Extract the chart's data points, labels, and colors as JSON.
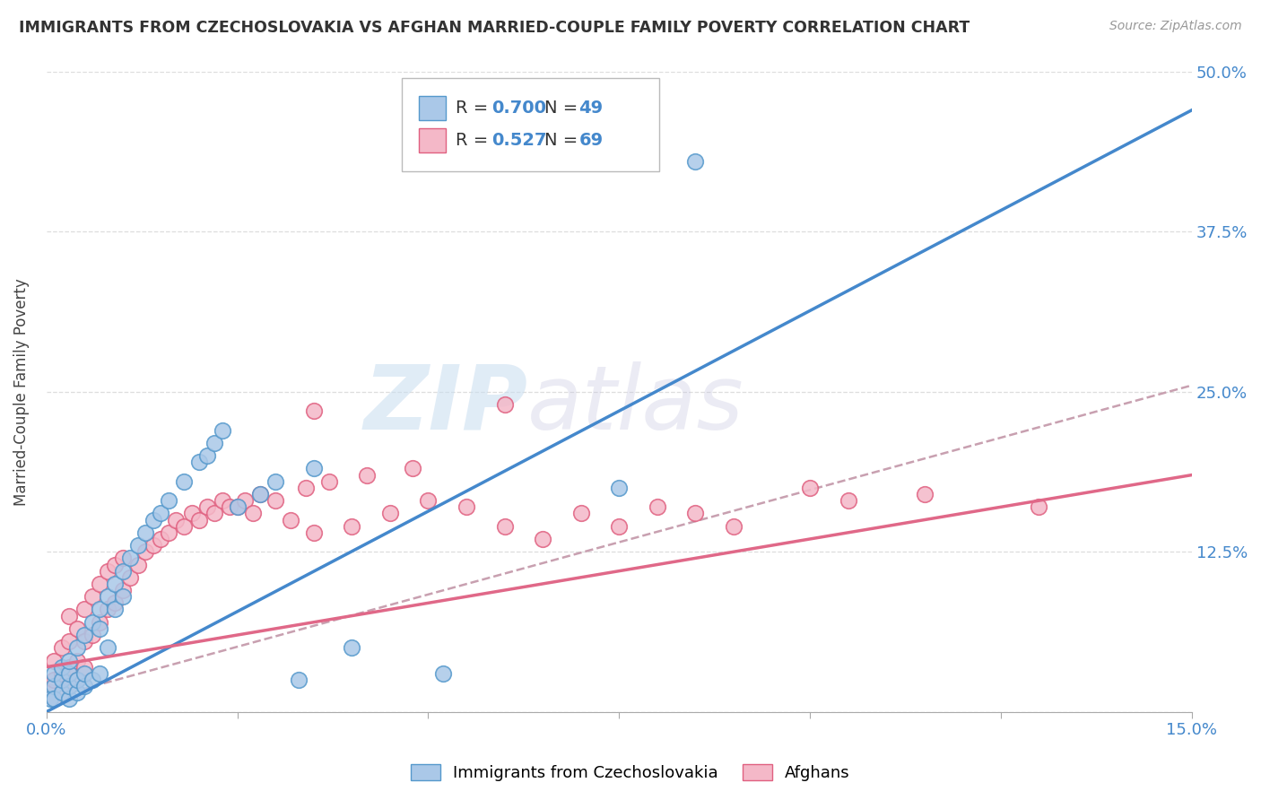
{
  "title": "IMMIGRANTS FROM CZECHOSLOVAKIA VS AFGHAN MARRIED-COUPLE FAMILY POVERTY CORRELATION CHART",
  "source": "Source: ZipAtlas.com",
  "ylabel": "Married-Couple Family Poverty",
  "legend_footer1": "Immigrants from Czechoslovakia",
  "legend_footer2": "Afghans",
  "blue_fill": "#aac8e8",
  "blue_edge": "#5599cc",
  "pink_fill": "#f4b8c8",
  "pink_edge": "#e06080",
  "blue_line": "#4488cc",
  "pink_line": "#e06888",
  "dash_line": "#c8a0b0",
  "xlim": [
    0,
    0.15
  ],
  "ylim": [
    0,
    0.5
  ],
  "blue_x": [
    0.0005,
    0.001,
    0.001,
    0.001,
    0.002,
    0.002,
    0.002,
    0.003,
    0.003,
    0.003,
    0.003,
    0.004,
    0.004,
    0.004,
    0.005,
    0.005,
    0.005,
    0.006,
    0.006,
    0.007,
    0.007,
    0.007,
    0.008,
    0.008,
    0.009,
    0.009,
    0.01,
    0.01,
    0.011,
    0.012,
    0.013,
    0.014,
    0.015,
    0.016,
    0.018,
    0.02,
    0.021,
    0.022,
    0.023,
    0.025,
    0.028,
    0.03,
    0.033,
    0.035,
    0.04,
    0.052,
    0.075,
    0.052,
    0.085
  ],
  "blue_y": [
    0.01,
    0.02,
    0.03,
    0.01,
    0.015,
    0.025,
    0.035,
    0.01,
    0.02,
    0.03,
    0.04,
    0.015,
    0.025,
    0.05,
    0.02,
    0.03,
    0.06,
    0.025,
    0.07,
    0.03,
    0.065,
    0.08,
    0.05,
    0.09,
    0.08,
    0.1,
    0.09,
    0.11,
    0.12,
    0.13,
    0.14,
    0.15,
    0.155,
    0.165,
    0.18,
    0.195,
    0.2,
    0.21,
    0.22,
    0.16,
    0.17,
    0.18,
    0.025,
    0.19,
    0.05,
    0.43,
    0.175,
    0.03,
    0.43
  ],
  "pink_x": [
    0.0005,
    0.001,
    0.001,
    0.001,
    0.002,
    0.002,
    0.002,
    0.003,
    0.003,
    0.003,
    0.003,
    0.004,
    0.004,
    0.004,
    0.005,
    0.005,
    0.005,
    0.006,
    0.006,
    0.007,
    0.007,
    0.008,
    0.008,
    0.009,
    0.009,
    0.01,
    0.01,
    0.011,
    0.012,
    0.013,
    0.014,
    0.015,
    0.016,
    0.017,
    0.018,
    0.019,
    0.02,
    0.021,
    0.022,
    0.023,
    0.024,
    0.025,
    0.026,
    0.027,
    0.028,
    0.03,
    0.032,
    0.034,
    0.035,
    0.037,
    0.04,
    0.042,
    0.045,
    0.048,
    0.05,
    0.055,
    0.06,
    0.065,
    0.07,
    0.075,
    0.08,
    0.085,
    0.09,
    0.1,
    0.105,
    0.115,
    0.13,
    0.06,
    0.035
  ],
  "pink_y": [
    0.015,
    0.01,
    0.025,
    0.04,
    0.015,
    0.03,
    0.05,
    0.02,
    0.035,
    0.055,
    0.075,
    0.025,
    0.04,
    0.065,
    0.035,
    0.055,
    0.08,
    0.06,
    0.09,
    0.07,
    0.1,
    0.08,
    0.11,
    0.085,
    0.115,
    0.095,
    0.12,
    0.105,
    0.115,
    0.125,
    0.13,
    0.135,
    0.14,
    0.15,
    0.145,
    0.155,
    0.15,
    0.16,
    0.155,
    0.165,
    0.16,
    0.16,
    0.165,
    0.155,
    0.17,
    0.165,
    0.15,
    0.175,
    0.14,
    0.18,
    0.145,
    0.185,
    0.155,
    0.19,
    0.165,
    0.16,
    0.145,
    0.135,
    0.155,
    0.145,
    0.16,
    0.155,
    0.145,
    0.175,
    0.165,
    0.17,
    0.16,
    0.24,
    0.235
  ],
  "blue_regline_x": [
    0.0,
    0.15
  ],
  "blue_regline_y": [
    0.0,
    0.47
  ],
  "pink_regline_x": [
    0.0,
    0.15
  ],
  "pink_regline_y": [
    0.035,
    0.185
  ],
  "dash_regline_x": [
    0.0,
    0.15
  ],
  "dash_regline_y": [
    0.01,
    0.255
  ]
}
